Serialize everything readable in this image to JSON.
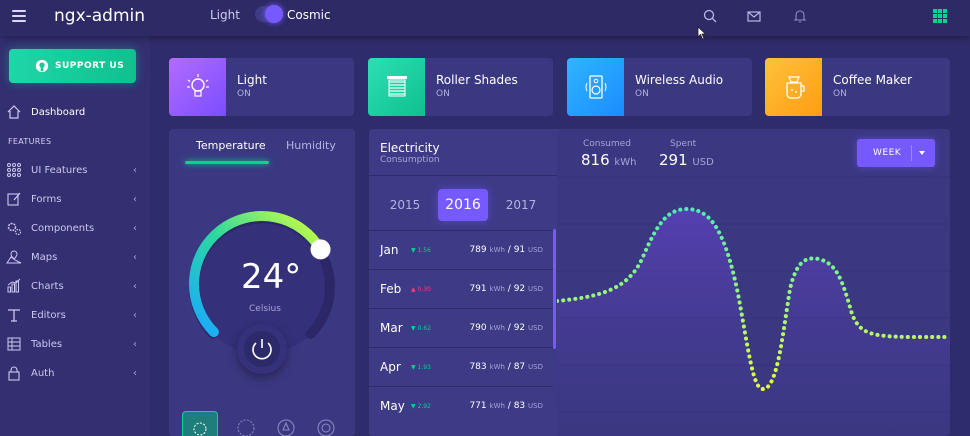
{
  "header": {
    "title": "ngx-admin",
    "theme_light": "Light",
    "theme_cosmic": "Cosmic",
    "icons": [
      "menu-icon",
      "search-icon",
      "mail-icon",
      "bell-icon",
      "apps-grid-icon"
    ]
  },
  "sidebar": {
    "support_label": "SUPPORT US",
    "dashboard_label": "Dashboard",
    "section_label": "FEATURES",
    "items": [
      {
        "label": "UI Features"
      },
      {
        "label": "Forms"
      },
      {
        "label": "Components"
      },
      {
        "label": "Maps"
      },
      {
        "label": "Charts"
      },
      {
        "label": "Editors"
      },
      {
        "label": "Tables"
      },
      {
        "label": "Auth"
      }
    ]
  },
  "devices": [
    {
      "name": "Light",
      "state": "ON",
      "color": "#9c60ff",
      "icon": "light-bulb-icon"
    },
    {
      "name": "Roller Shades",
      "state": "ON",
      "color": "#1ed6a8",
      "icon": "roller-shades-icon"
    },
    {
      "name": "Wireless Audio",
      "state": "ON",
      "color": "#1aa8ff",
      "icon": "speaker-icon"
    },
    {
      "name": "Coffee Maker",
      "state": "ON",
      "color": "#ffb021",
      "icon": "coffee-maker-icon"
    }
  ],
  "temperature": {
    "tab_temperature": "Temperature",
    "tab_humidity": "Humidity",
    "value": "24°",
    "unit": "Celsius",
    "level": 0.72
  },
  "electricity": {
    "title": "Electricity",
    "subtitle": "Consumption",
    "years": [
      "2015",
      "2016",
      "2017"
    ],
    "selected_year": "2016",
    "months": [
      {
        "month": "Jan",
        "delta": "1.56",
        "trend": "down",
        "kwh": "789",
        "usd": "91"
      },
      {
        "month": "Feb",
        "delta": "0.30",
        "trend": "up",
        "kwh": "791",
        "usd": "92"
      },
      {
        "month": "Mar",
        "delta": "0.62",
        "trend": "down",
        "kwh": "790",
        "usd": "92"
      },
      {
        "month": "Apr",
        "delta": "1.93",
        "trend": "down",
        "kwh": "783",
        "usd": "87"
      },
      {
        "month": "May",
        "delta": "2.92",
        "trend": "down",
        "kwh": "771",
        "usd": "83"
      }
    ],
    "kwh_unit": "kWh",
    "usd_unit": "USD",
    "consumed_label": "Consumed",
    "consumed_value": "816",
    "spent_label": "Spent",
    "spent_value": "291",
    "period_label": "WEEK",
    "accent": "#7659ff",
    "down_color": "#00d68f",
    "up_color": "#ff3d71"
  }
}
